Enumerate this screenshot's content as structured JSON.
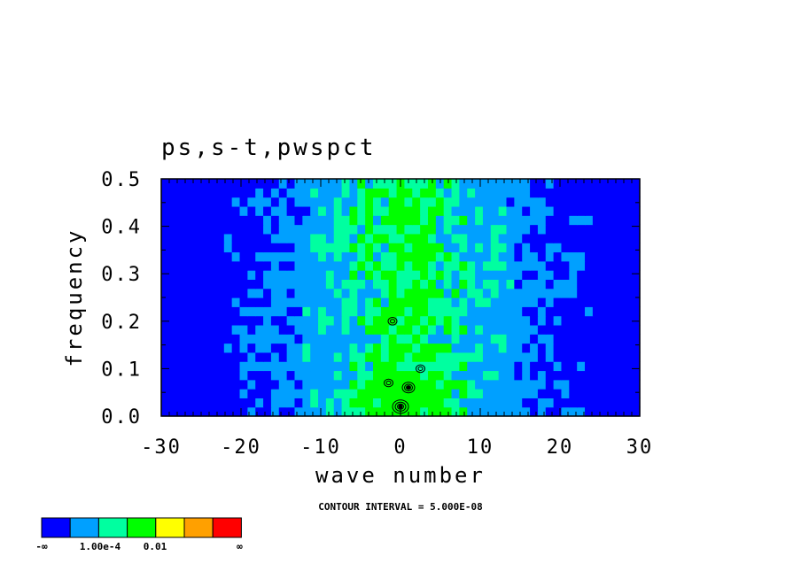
{
  "chart_data": {
    "type": "heatmap",
    "title": "ps,s-t,pwspct",
    "xlabel": "wave number",
    "ylabel": "frequency",
    "xlim": [
      -30,
      30
    ],
    "ylim": [
      0.0,
      0.5
    ],
    "xticks": [
      "-30",
      "-20",
      "-10",
      "0",
      "10",
      "20",
      "30"
    ],
    "xtick_values": [
      -30,
      -20,
      -10,
      0,
      10,
      20,
      30
    ],
    "yticks": [
      "0.0",
      "0.1",
      "0.2",
      "0.3",
      "0.4",
      "0.5"
    ],
    "ytick_values": [
      0.0,
      0.1,
      0.2,
      0.3,
      0.4,
      0.5
    ],
    "contour_note": "CONTOUR INTERVAL = 5.000E-08",
    "colorbar": {
      "colors": [
        "#0000ff",
        "#00a0ff",
        "#00ffa0",
        "#00ff00",
        "#ffff00",
        "#ffa000",
        "#ff0000"
      ],
      "labels": [
        "-∞",
        "1.00e-4",
        "0.01",
        "∞"
      ]
    },
    "field_levels": {
      "dark_blue": "#0000ff",
      "light_blue": "#00a0ff",
      "teal": "#00ffa0",
      "green": "#00ff00"
    },
    "contour_peaks": [
      {
        "k": 0,
        "f": 0.02
      },
      {
        "k": 1,
        "f": 0.06
      },
      {
        "k": -1,
        "f": 0.2
      },
      {
        "k": 2.5,
        "f": 0.1
      },
      {
        "k": -1.5,
        "f": 0.07
      }
    ]
  }
}
